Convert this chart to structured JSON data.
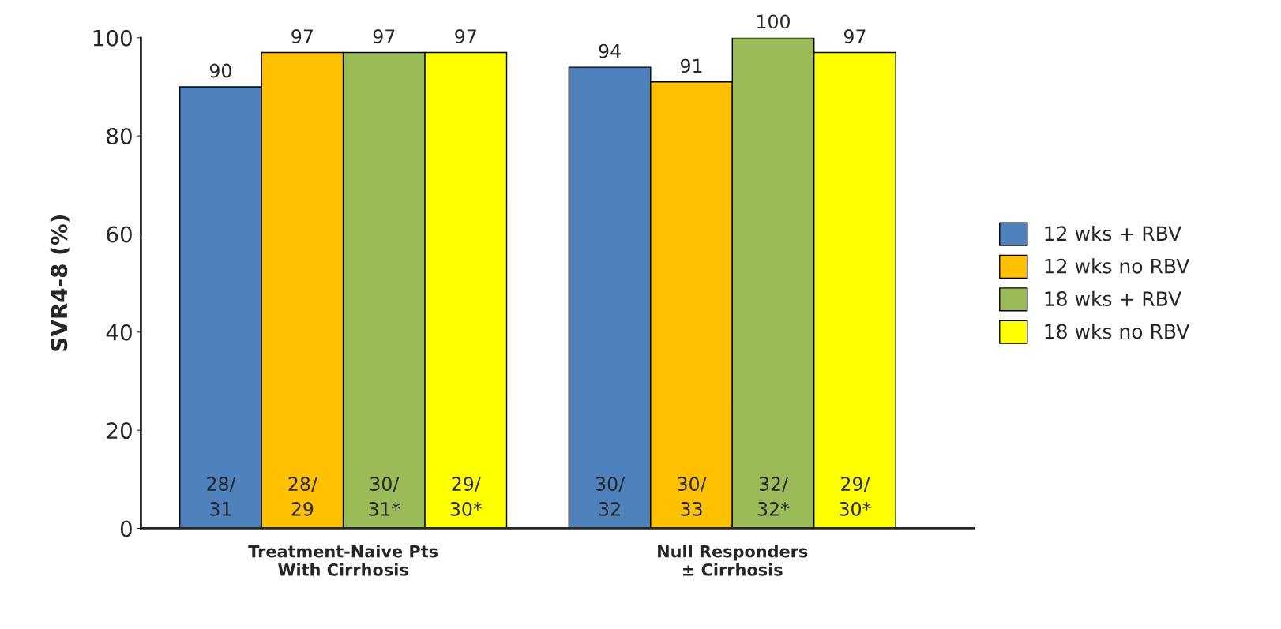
{
  "chart_data": {
    "type": "bar",
    "ylabel": "SVR4-8 (%)",
    "categories": [
      "Treatment-Naive Pts\nWith Cirrhosis",
      "Null Responders\n± Cirrhosis"
    ],
    "series": [
      {
        "name": "12 wks + RBV",
        "color": "#4f81bd",
        "values": [
          90,
          94
        ]
      },
      {
        "name": "12 wks no RBV",
        "color": "#ffc000",
        "values": [
          97,
          91
        ]
      },
      {
        "name": "18 wks + RBV",
        "color": "#9bbb59",
        "values": [
          97,
          100
        ]
      },
      {
        "name": "18 wks no RBV",
        "color": "#ffff00",
        "values": [
          97,
          97
        ]
      }
    ],
    "annotations": [
      "28/\n31",
      "28/\n29",
      "30/\n31*",
      "29/\n30*",
      "30/\n32",
      "30/\n33",
      "32/\n32*",
      "29/\n30*"
    ],
    "ylim": [
      0,
      100
    ],
    "yticks": [
      0,
      20,
      40,
      60,
      80,
      100
    ],
    "data_labels": true,
    "grid": false,
    "legend": "right"
  }
}
